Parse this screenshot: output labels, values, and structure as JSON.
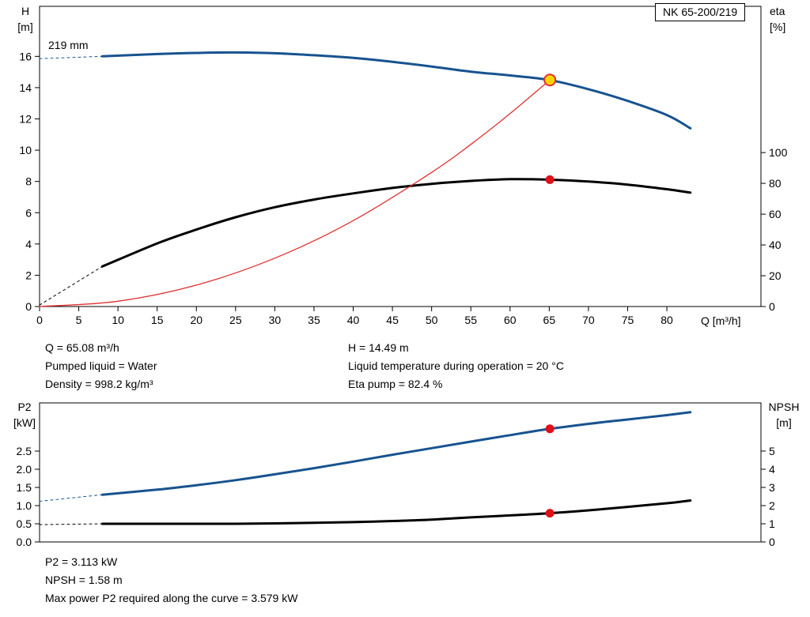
{
  "pump_name": "NK 65-200/219",
  "impeller_label": "219 mm",
  "colors": {
    "curve_blue": "#17538f",
    "curve_black": "#000000",
    "curve_red": "#e03030",
    "marker_yellow_fill": "#ffd400",
    "marker_yellow_stroke": "#e03030",
    "marker_red_fill": "#e01018",
    "axis": "#000000"
  },
  "top_info": {
    "left": [
      "Q = 65.08 m³/h",
      "Pumped liquid = Water",
      "Density = 998.2 kg/m³"
    ],
    "right": [
      "H = 14.49 m",
      "Liquid temperature during operation = 20 °C",
      "Eta pump = 82.4 %"
    ]
  },
  "bottom_info": [
    "P2 = 3.113 kW",
    "NPSH = 1.58 m",
    "Max power P2 required along the curve = 3.579 kW"
  ],
  "chart_data": [
    {
      "id": "head-eta-chart",
      "type": "line",
      "title": "NK 65-200/219",
      "grid": false,
      "x_axis": {
        "label": "Q [m³/h]",
        "min": 0,
        "max": 92,
        "ticks": [
          {
            "v": 0,
            "label": "0"
          },
          {
            "v": 5,
            "label": "5"
          },
          {
            "v": 10,
            "label": "10"
          },
          {
            "v": 15,
            "label": "15"
          },
          {
            "v": 20,
            "label": "20"
          },
          {
            "v": 25,
            "label": "25"
          },
          {
            "v": 30,
            "label": "30"
          },
          {
            "v": 35,
            "label": "35"
          },
          {
            "v": 40,
            "label": "40"
          },
          {
            "v": 45,
            "label": "45"
          },
          {
            "v": 50,
            "label": "50"
          },
          {
            "v": 55,
            "label": "55"
          },
          {
            "v": 60,
            "label": "60"
          },
          {
            "v": 65,
            "label": "65"
          },
          {
            "v": 70,
            "label": "70"
          },
          {
            "v": 75,
            "label": "75"
          },
          {
            "v": 80,
            "label": "80"
          }
        ]
      },
      "y_left": {
        "label": "H [m]",
        "label_lines": [
          "H",
          "[m]"
        ],
        "min": 0,
        "max": 19.2,
        "ticks": [
          {
            "v": 0,
            "label": "0"
          },
          {
            "v": 2,
            "label": "2"
          },
          {
            "v": 4,
            "label": "4"
          },
          {
            "v": 6,
            "label": "6"
          },
          {
            "v": 8,
            "label": "8"
          },
          {
            "v": 10,
            "label": "10"
          },
          {
            "v": 12,
            "label": "12"
          },
          {
            "v": 14,
            "label": "14"
          },
          {
            "v": 16,
            "label": "16"
          }
        ]
      },
      "y_right": {
        "label": "eta [%]",
        "label_lines": [
          "eta",
          "[%]"
        ],
        "min": 0,
        "max": 195,
        "ticks": [
          {
            "v": 0,
            "label": "0"
          },
          {
            "v": 20,
            "label": "20"
          },
          {
            "v": 40,
            "label": "40"
          },
          {
            "v": 60,
            "label": "60"
          },
          {
            "v": 80,
            "label": "80"
          },
          {
            "v": 100,
            "label": "100"
          }
        ]
      },
      "series": [
        {
          "name": "head-curve-dashed",
          "axis": "left",
          "style": "dashed",
          "color_key": "curve_blue",
          "width": 1,
          "points": [
            [
              0,
              15.85
            ],
            [
              8,
              16.0
            ]
          ]
        },
        {
          "name": "eta-curve-dashed",
          "axis": "right",
          "style": "dashed",
          "color_key": "curve_black",
          "width": 1,
          "points": [
            [
              0,
              1
            ],
            [
              8,
              26
            ]
          ]
        },
        {
          "name": "eta-curve",
          "axis": "right",
          "style": "solid",
          "color_key": "curve_black",
          "width": 3,
          "points": [
            [
              8,
              26
            ],
            [
              15,
              41
            ],
            [
              20,
              50
            ],
            [
              25,
              58
            ],
            [
              30,
              64.5
            ],
            [
              35,
              69.5
            ],
            [
              40,
              73.5
            ],
            [
              45,
              77
            ],
            [
              50,
              79.7
            ],
            [
              55,
              81.6
            ],
            [
              60,
              82.7
            ],
            [
              65,
              82.4
            ],
            [
              70,
              81.2
            ],
            [
              75,
              79.2
            ],
            [
              80,
              76.2
            ],
            [
              83,
              74
            ]
          ]
        },
        {
          "name": "head-curve",
          "axis": "left",
          "style": "solid",
          "color_key": "curve_blue",
          "width": 3,
          "points": [
            [
              8,
              16.0
            ],
            [
              15,
              16.15
            ],
            [
              20,
              16.22
            ],
            [
              25,
              16.25
            ],
            [
              30,
              16.2
            ],
            [
              35,
              16.07
            ],
            [
              40,
              15.9
            ],
            [
              45,
              15.65
            ],
            [
              50,
              15.35
            ],
            [
              55,
              15.02
            ],
            [
              60,
              14.78
            ],
            [
              65,
              14.49
            ],
            [
              70,
              13.9
            ],
            [
              75,
              13.15
            ],
            [
              80,
              12.25
            ],
            [
              83,
              11.4
            ]
          ]
        },
        {
          "name": "duty-curve",
          "axis": "left",
          "style": "solid",
          "color_key": "curve_red",
          "width": 1.3,
          "points": [
            [
              0,
              0
            ],
            [
              10,
              0.34
            ],
            [
              20,
              1.37
            ],
            [
              30,
              3.09
            ],
            [
              40,
              5.49
            ],
            [
              50,
              8.58
            ],
            [
              55,
              10.37
            ],
            [
              60,
              12.34
            ],
            [
              65.08,
              14.49
            ]
          ]
        }
      ],
      "markers": [
        {
          "name": "duty-point-head",
          "axis": "left",
          "x": 65.08,
          "y": 14.49,
          "r": 7,
          "fill_key": "marker_yellow_fill",
          "stroke_key": "marker_yellow_stroke",
          "stroke_width": 2
        },
        {
          "name": "duty-point-eta",
          "axis": "right",
          "x": 65.08,
          "y": 82.4,
          "r": 5.5,
          "fill_key": "marker_red_fill"
        }
      ]
    },
    {
      "id": "p2-npsh-chart",
      "type": "line",
      "title": "",
      "grid": false,
      "x_axis": {
        "label": "",
        "min": 0,
        "max": 92,
        "ticks": []
      },
      "y_left": {
        "label": "P2 [kW]",
        "label_lines": [
          "P2",
          "[kW]"
        ],
        "min": 0,
        "max": 3.826,
        "ticks": [
          {
            "v": 0,
            "label": "0.0"
          },
          {
            "v": 0.5,
            "label": "0.5"
          },
          {
            "v": 1,
            "label": "1.0"
          },
          {
            "v": 1.5,
            "label": "1.5"
          },
          {
            "v": 2,
            "label": "2.0"
          },
          {
            "v": 2.5,
            "label": "2.5"
          }
        ]
      },
      "y_right": {
        "label": "NPSH [m]",
        "label_lines": [
          "NPSH",
          "[m]"
        ],
        "min": 0,
        "max": 7.65,
        "ticks": [
          {
            "v": 0,
            "label": "0"
          },
          {
            "v": 1,
            "label": "1"
          },
          {
            "v": 2,
            "label": "2"
          },
          {
            "v": 3,
            "label": "3"
          },
          {
            "v": 4,
            "label": "4"
          },
          {
            "v": 5,
            "label": "5"
          }
        ]
      },
      "series": [
        {
          "name": "p2-curve-dashed",
          "axis": "left",
          "style": "dashed",
          "color_key": "curve_blue",
          "width": 1,
          "points": [
            [
              0,
              1.12
            ],
            [
              8,
              1.3
            ]
          ]
        },
        {
          "name": "npsh-curve-dashed",
          "axis": "right",
          "style": "dashed",
          "color_key": "curve_black",
          "width": 1,
          "points": [
            [
              0,
              0.95
            ],
            [
              8,
              1.0
            ]
          ]
        },
        {
          "name": "p2-curve",
          "axis": "left",
          "style": "solid",
          "color_key": "curve_blue",
          "width": 3,
          "points": [
            [
              8,
              1.3
            ],
            [
              15,
              1.44
            ],
            [
              20,
              1.56
            ],
            [
              25,
              1.7
            ],
            [
              30,
              1.86
            ],
            [
              35,
              2.03
            ],
            [
              40,
              2.21
            ],
            [
              45,
              2.4
            ],
            [
              50,
              2.58
            ],
            [
              55,
              2.76
            ],
            [
              60,
              2.94
            ],
            [
              65,
              3.11
            ],
            [
              70,
              3.25
            ],
            [
              75,
              3.37
            ],
            [
              80,
              3.49
            ],
            [
              83,
              3.57
            ]
          ]
        },
        {
          "name": "npsh-curve",
          "axis": "right",
          "style": "solid",
          "color_key": "curve_black",
          "width": 3,
          "points": [
            [
              8,
              1.0
            ],
            [
              15,
              1.0
            ],
            [
              20,
              1.0
            ],
            [
              25,
              1.0
            ],
            [
              30,
              1.02
            ],
            [
              35,
              1.05
            ],
            [
              40,
              1.09
            ],
            [
              45,
              1.15
            ],
            [
              50,
              1.23
            ],
            [
              55,
              1.35
            ],
            [
              60,
              1.46
            ],
            [
              65,
              1.58
            ],
            [
              70,
              1.74
            ],
            [
              75,
              1.93
            ],
            [
              80,
              2.13
            ],
            [
              83,
              2.28
            ]
          ]
        }
      ],
      "markers": [
        {
          "name": "duty-point-p2",
          "axis": "left",
          "x": 65.08,
          "y": 3.113,
          "r": 5.5,
          "fill_key": "marker_red_fill"
        },
        {
          "name": "duty-point-npsh",
          "axis": "right",
          "x": 65.08,
          "y": 1.58,
          "r": 5.5,
          "fill_key": "marker_red_fill"
        }
      ]
    }
  ]
}
